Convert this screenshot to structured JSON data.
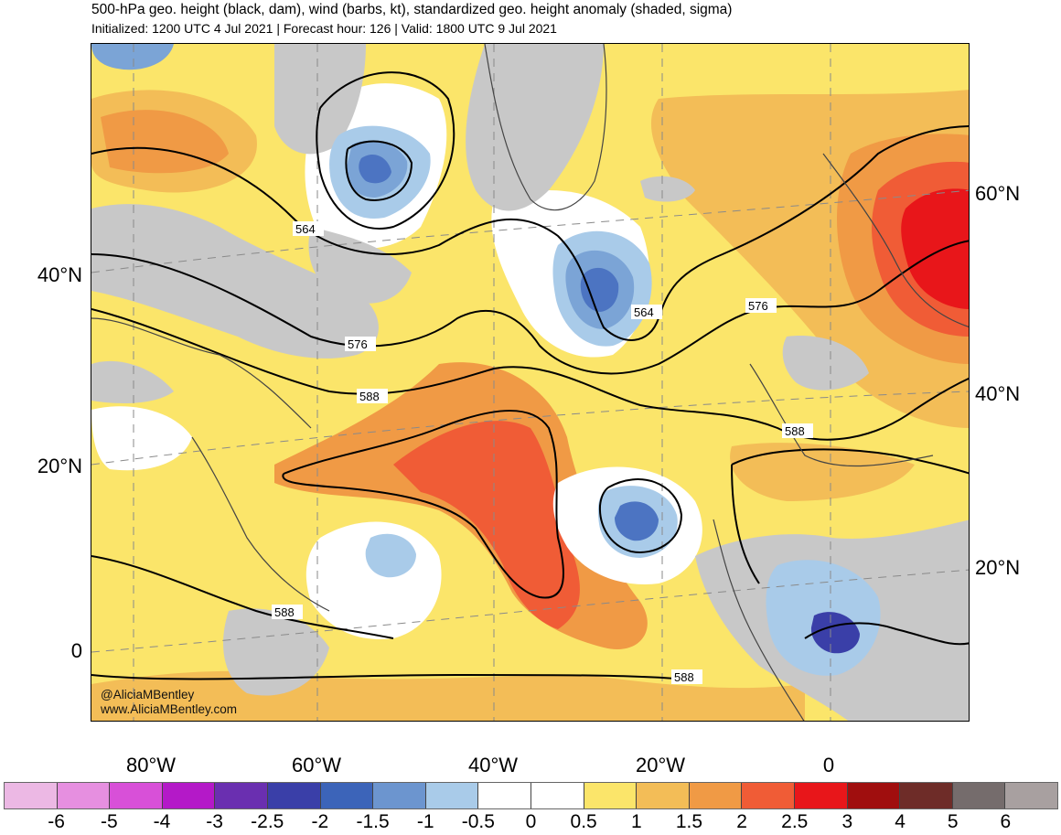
{
  "header": {
    "title": "500-hPa geo. height (black, dam), wind (barbs, kt), standardized geo. height anomaly (shaded, sigma)",
    "subtitle": "Initialized: 1200 UTC 4 Jul 2021 | Forecast hour: 126 | Valid: 1800 UTC 9 Jul 2021"
  },
  "map": {
    "lat_labels_left": [
      "40°N",
      "20°N",
      "0"
    ],
    "lat_labels_right": [
      "60°N",
      "40°N",
      "20°N"
    ],
    "lon_labels_bottom": [
      "80°W",
      "60°W",
      "40°W",
      "20°W",
      "0"
    ],
    "contour_labels": [
      "564",
      "576",
      "588",
      "564",
      "576",
      "588",
      "588",
      "588"
    ],
    "credit_handle": "@AliciaMBentley",
    "credit_site": "www.AliciaMBentley.com",
    "colors": {
      "land_no_anomaly": "#c8c8c8",
      "neutral": "#ffffff",
      "pos_0_5": "#fbe56a",
      "pos_1": "#f3bd57",
      "pos_1_5": "#f09a45",
      "pos_2": "#f05c36",
      "pos_2_5": "#e8161a",
      "neg_0_5": "#a9cbe9",
      "neg_1": "#7ba4d6",
      "neg_1_5": "#4c74c2",
      "neg_2": "#3a3fa8",
      "contour": "#000000",
      "coast": "#444444"
    }
  },
  "colorbar": {
    "labels": [
      "-6",
      "-5",
      "-4",
      "-3",
      "-2.5",
      "-2",
      "-1.5",
      "-1",
      "-0.5",
      "0",
      "0.5",
      "1",
      "1.5",
      "2",
      "2.5",
      "3",
      "4",
      "5",
      "6"
    ],
    "colors": [
      "#ecb8e4",
      "#e68fe0",
      "#d850d8",
      "#b419c8",
      "#6a2fb0",
      "#3a3fa8",
      "#3c64b9",
      "#6c95cf",
      "#a9cbe9",
      "#ffffff",
      "#ffffff",
      "#fbe56a",
      "#f3bd57",
      "#f09a45",
      "#f05c36",
      "#e8161a",
      "#a00e0e",
      "#6e2c28",
      "#756c6c",
      "#a8a0a0"
    ]
  }
}
